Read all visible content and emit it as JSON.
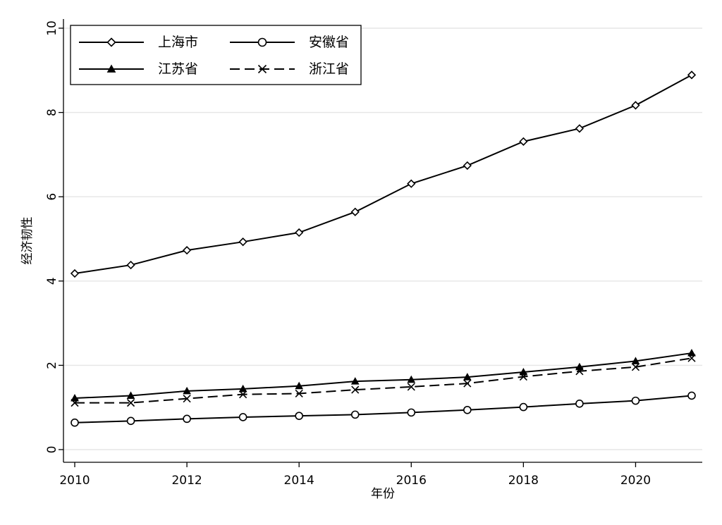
{
  "chart_data": {
    "type": "line",
    "title": "",
    "xlabel": "年份",
    "ylabel": "经济韧性",
    "xlim": [
      2010,
      2021
    ],
    "ylim": [
      0,
      10
    ],
    "x_ticks": [
      2010,
      2012,
      2014,
      2016,
      2018,
      2020
    ],
    "y_ticks": [
      0,
      2,
      4,
      6,
      8,
      10
    ],
    "grid": "horizontal",
    "legend_position": "top-left",
    "x": [
      2010,
      2011,
      2012,
      2013,
      2014,
      2015,
      2016,
      2017,
      2018,
      2019,
      2020,
      2021
    ],
    "series": [
      {
        "name": "上海市",
        "marker": "diamond",
        "line_style": "solid",
        "values": [
          4.18,
          4.38,
          4.73,
          4.93,
          5.15,
          5.64,
          6.31,
          6.74,
          7.31,
          7.62,
          8.17,
          8.89
        ]
      },
      {
        "name": "安徽省",
        "marker": "circle",
        "line_style": "solid",
        "values": [
          0.64,
          0.68,
          0.73,
          0.77,
          0.8,
          0.83,
          0.88,
          0.94,
          1.01,
          1.09,
          1.16,
          1.28
        ]
      },
      {
        "name": "江苏省",
        "marker": "triangle",
        "line_style": "solid",
        "values": [
          1.22,
          1.28,
          1.39,
          1.44,
          1.51,
          1.62,
          1.66,
          1.72,
          1.84,
          1.96,
          2.1,
          2.29
        ]
      },
      {
        "name": "浙江省",
        "marker": "x",
        "line_style": "dashed",
        "values": [
          1.11,
          1.11,
          1.21,
          1.31,
          1.33,
          1.42,
          1.49,
          1.57,
          1.73,
          1.86,
          1.96,
          2.17
        ]
      }
    ]
  }
}
